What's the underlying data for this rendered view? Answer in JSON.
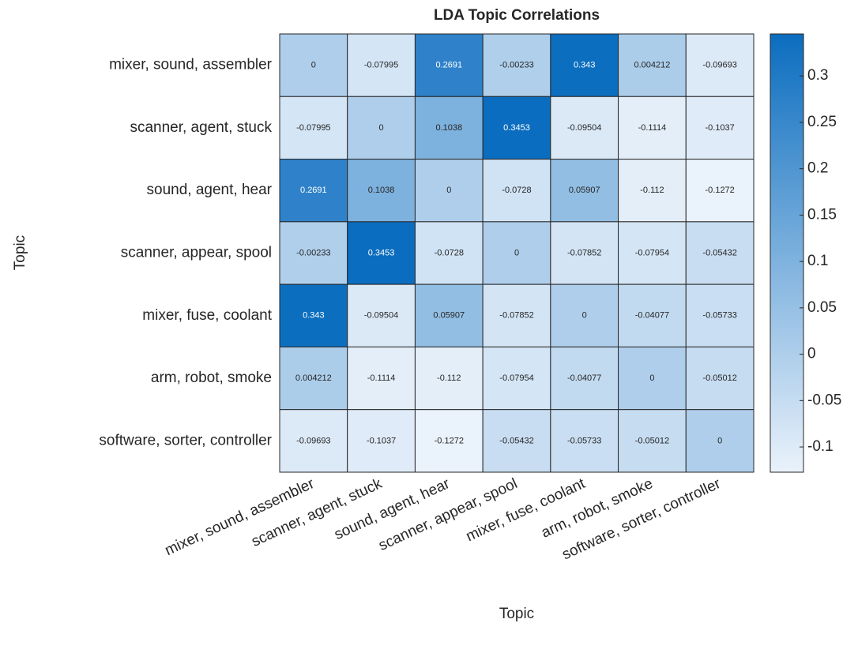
{
  "chart_data": {
    "type": "heatmap",
    "title": "LDA Topic Correlations",
    "xlabel": "Topic",
    "ylabel": "Topic",
    "categories": [
      "mixer, sound, assembler",
      "scanner, agent, stuck",
      "sound, agent, hear",
      "scanner, appear, spool",
      "mixer, fuse, coolant",
      "arm, robot, smoke",
      "software, sorter, controller"
    ],
    "y_categories": [
      "mixer, sound, assembler",
      "scanner, agent, stuck",
      "sound, agent, hear",
      "scanner, appear, spool",
      "mixer, fuse, coolant",
      "arm, robot, smoke",
      "software, sorter, controller"
    ],
    "values": [
      [
        0,
        -0.07995,
        0.2691,
        -0.00233,
        0.343,
        0.004212,
        -0.09693
      ],
      [
        -0.07995,
        0,
        0.1038,
        0.3453,
        -0.09504,
        -0.1114,
        -0.1037
      ],
      [
        0.2691,
        0.1038,
        0,
        -0.0728,
        0.05907,
        -0.112,
        -0.1272
      ],
      [
        -0.00233,
        0.3453,
        -0.0728,
        0,
        -0.07852,
        -0.07954,
        -0.05432
      ],
      [
        0.343,
        -0.09504,
        0.05907,
        -0.07852,
        0,
        -0.04077,
        -0.05733
      ],
      [
        0.004212,
        -0.1114,
        -0.112,
        -0.07954,
        -0.04077,
        0,
        -0.05012
      ],
      [
        -0.09693,
        -0.1037,
        -0.1272,
        -0.05432,
        -0.05733,
        -0.05012,
        0
      ]
    ],
    "colormap": [
      "#eaf2fb",
      "#0b6dbf"
    ],
    "clim": [
      -0.1272,
      0.3453
    ],
    "cticks": [
      -0.1,
      -0.05,
      0,
      0.05,
      0.1,
      0.15,
      0.2,
      0.25,
      0.3
    ]
  }
}
